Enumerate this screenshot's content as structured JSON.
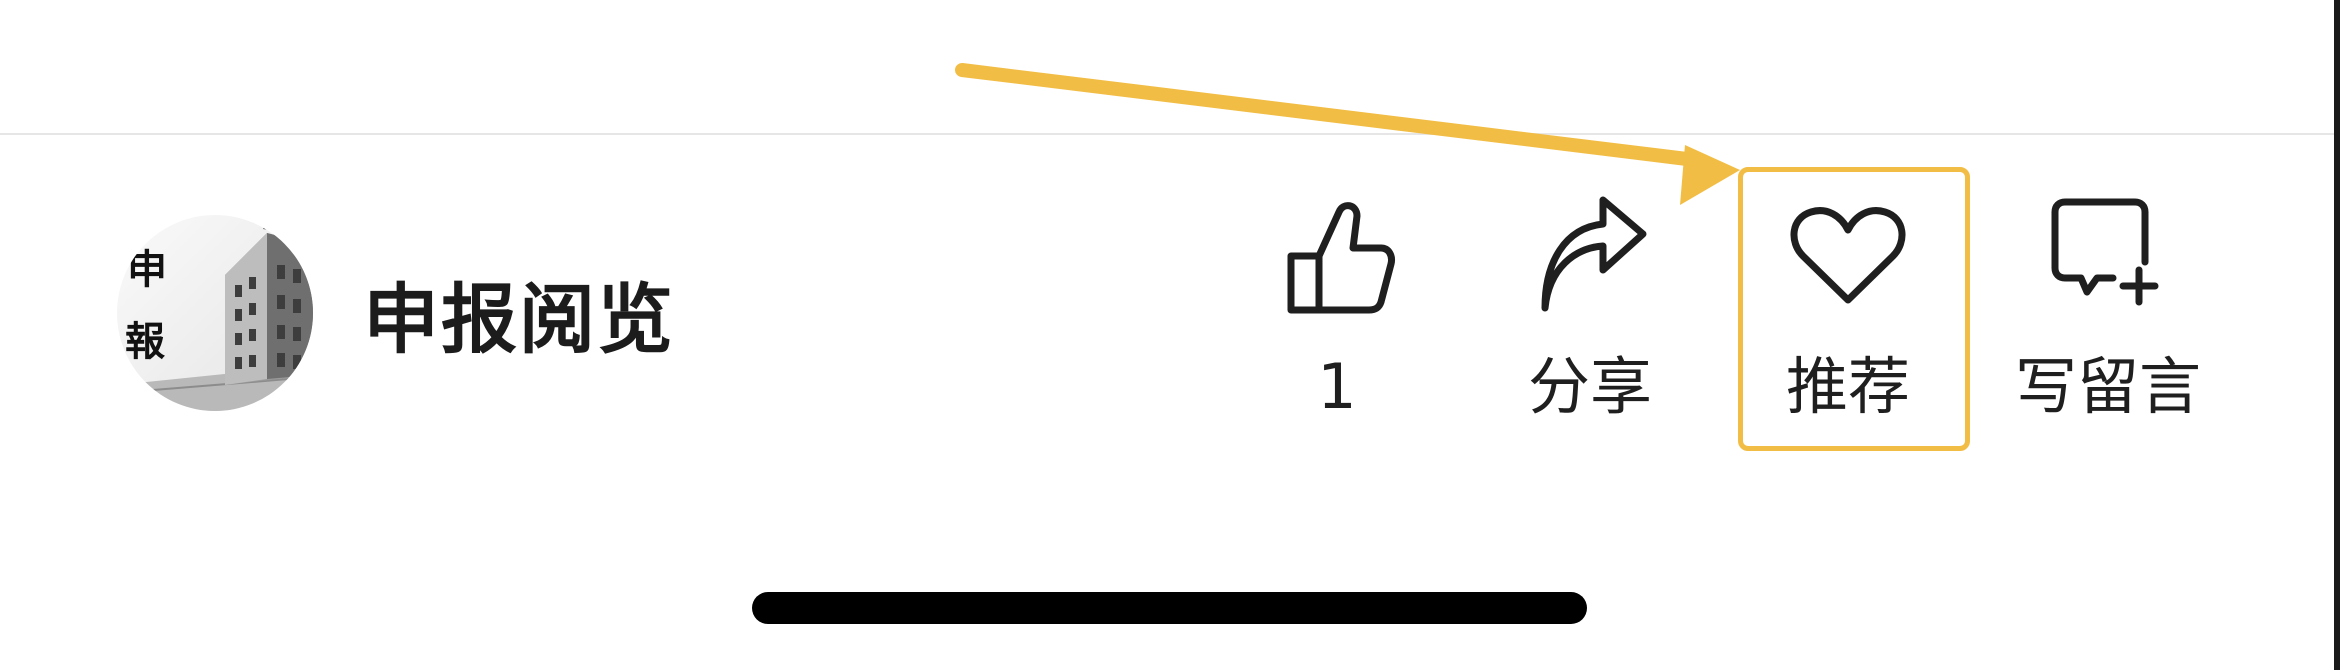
{
  "account": {
    "name": "申报阅览",
    "avatar_glyphs": [
      "申",
      "報"
    ]
  },
  "actions": {
    "like": {
      "icon": "thumbs-up-icon",
      "count": "1"
    },
    "share": {
      "icon": "share-arrow-icon",
      "label": "分享"
    },
    "recommend": {
      "icon": "heart-icon",
      "label": "推荐"
    },
    "comment": {
      "icon": "comment-plus-icon",
      "label": "写留言"
    }
  },
  "annotation": {
    "highlight_color": "#f2bd45",
    "target": "recommend"
  },
  "colors": {
    "background": "#ffffff",
    "text": "#1f1f1f",
    "divider": "#e6e6e6",
    "home_indicator": "#000000"
  }
}
